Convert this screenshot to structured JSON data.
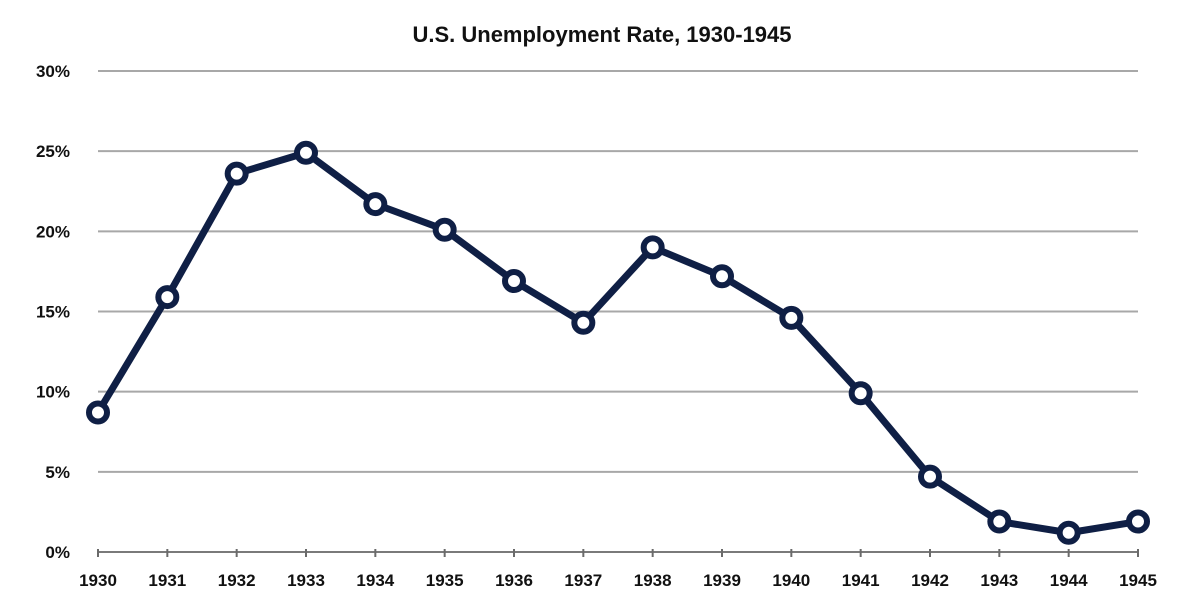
{
  "chart_data": {
    "type": "line",
    "title": "U.S. Unemployment Rate, 1930-1945",
    "xlabel": "",
    "ylabel": "",
    "categories": [
      "1930",
      "1931",
      "1932",
      "1933",
      "1934",
      "1935",
      "1936",
      "1937",
      "1938",
      "1939",
      "1940",
      "1941",
      "1942",
      "1943",
      "1944",
      "1945"
    ],
    "series": [
      {
        "values": [
          8.7,
          15.9,
          23.6,
          24.9,
          21.7,
          20.1,
          16.9,
          14.3,
          19.0,
          17.2,
          14.6,
          9.9,
          4.7,
          1.9,
          1.2,
          1.9
        ]
      }
    ],
    "ylim": [
      0,
      30
    ],
    "yticks": [
      0,
      5,
      10,
      15,
      20,
      25,
      30
    ],
    "ytick_labels": [
      "0%",
      "5%",
      "10%",
      "15%",
      "20%",
      "25%",
      "30%"
    ],
    "grid": true,
    "legend": "none",
    "line_color": "#0f1f45",
    "marker_fill": "#ffffff"
  }
}
